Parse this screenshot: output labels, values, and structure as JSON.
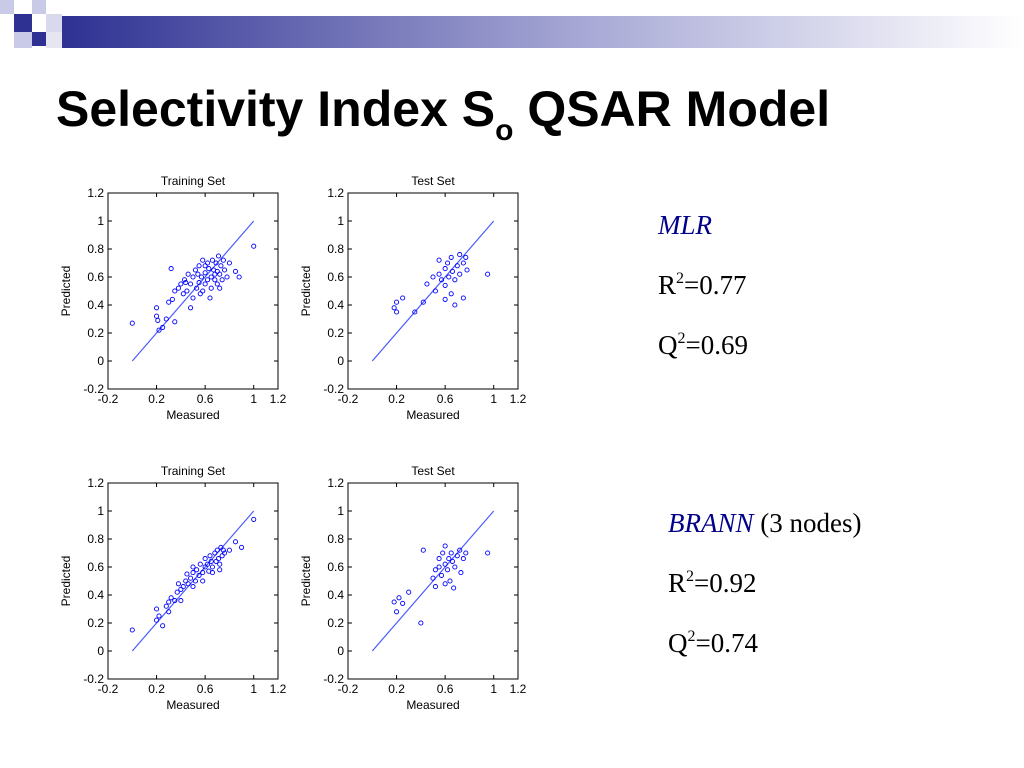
{
  "slide": {
    "title_main": "Selectivity Index S",
    "title_sub": "o",
    "title_rest": " QSAR Model"
  },
  "results": {
    "mlr": {
      "model": "MLR",
      "extra": "",
      "r_label": "R",
      "r_value": "=0.77",
      "q_label": "Q",
      "q_value": "=0.69",
      "exp": "2"
    },
    "brann": {
      "model": "BRANN",
      "extra": " (3 nodes)",
      "r_label": "R",
      "r_value": "=0.92",
      "q_label": "Q",
      "q_value": "=0.74",
      "exp": "2"
    }
  },
  "colors": {
    "points": "#0000ff",
    "fit_line": "#4a5cff",
    "banner_dark": "#2e3192",
    "banner_light": "#c9c9e8"
  },
  "chart_data": [
    {
      "type": "scatter",
      "title": "Training Set",
      "xlabel": "Measured",
      "ylabel": "Predicted",
      "xlim": [
        -0.2,
        1.2
      ],
      "ylim": [
        -0.2,
        1.2
      ],
      "xticks": [
        "-0.2",
        "0.2",
        "0.6",
        "1",
        "1.2"
      ],
      "yticks": [
        "1.2",
        "1",
        "0.8",
        "0.6",
        "0.4",
        "0.2",
        "0",
        "-0.2"
      ],
      "fit_line": [
        [
          0,
          0
        ],
        [
          1,
          1
        ]
      ],
      "points": [
        [
          0.0,
          0.27
        ],
        [
          0.2,
          0.38
        ],
        [
          0.2,
          0.32
        ],
        [
          0.21,
          0.29
        ],
        [
          0.22,
          0.22
        ],
        [
          0.25,
          0.24
        ],
        [
          0.28,
          0.3
        ],
        [
          0.3,
          0.42
        ],
        [
          0.33,
          0.44
        ],
        [
          0.35,
          0.28
        ],
        [
          0.35,
          0.5
        ],
        [
          0.38,
          0.52
        ],
        [
          0.4,
          0.55
        ],
        [
          0.42,
          0.48
        ],
        [
          0.43,
          0.58
        ],
        [
          0.45,
          0.5
        ],
        [
          0.46,
          0.62
        ],
        [
          0.48,
          0.55
        ],
        [
          0.5,
          0.6
        ],
        [
          0.5,
          0.45
        ],
        [
          0.52,
          0.65
        ],
        [
          0.53,
          0.52
        ],
        [
          0.55,
          0.68
        ],
        [
          0.55,
          0.56
        ],
        [
          0.57,
          0.6
        ],
        [
          0.58,
          0.5
        ],
        [
          0.58,
          0.72
        ],
        [
          0.6,
          0.63
        ],
        [
          0.6,
          0.55
        ],
        [
          0.62,
          0.7
        ],
        [
          0.62,
          0.58
        ],
        [
          0.63,
          0.66
        ],
        [
          0.65,
          0.6
        ],
        [
          0.65,
          0.52
        ],
        [
          0.66,
          0.72
        ],
        [
          0.67,
          0.65
        ],
        [
          0.68,
          0.58
        ],
        [
          0.69,
          0.7
        ],
        [
          0.7,
          0.64
        ],
        [
          0.7,
          0.55
        ],
        [
          0.71,
          0.75
        ],
        [
          0.72,
          0.62
        ],
        [
          0.73,
          0.68
        ],
        [
          0.74,
          0.58
        ],
        [
          0.75,
          0.72
        ],
        [
          0.76,
          0.65
        ],
        [
          0.78,
          0.6
        ],
        [
          0.8,
          0.7
        ],
        [
          0.85,
          0.64
        ],
        [
          0.88,
          0.6
        ],
        [
          1.0,
          0.82
        ],
        [
          0.32,
          0.66
        ],
        [
          0.48,
          0.38
        ],
        [
          0.56,
          0.48
        ],
        [
          0.64,
          0.45
        ],
        [
          0.54,
          0.62
        ],
        [
          0.6,
          0.68
        ],
        [
          0.68,
          0.62
        ],
        [
          0.72,
          0.52
        ],
        [
          0.44,
          0.56
        ]
      ]
    },
    {
      "type": "scatter",
      "title": "Test Set",
      "xlabel": "Measured",
      "ylabel": "Predicted",
      "xlim": [
        -0.2,
        1.2
      ],
      "ylim": [
        -0.2,
        1.2
      ],
      "xticks": [
        "-0.2",
        "0.2",
        "0.6",
        "1",
        "1.2"
      ],
      "yticks": [
        "1.2",
        "1",
        "0.8",
        "0.6",
        "0.4",
        "0.2",
        "0",
        "-0.2"
      ],
      "fit_line": [
        [
          0,
          0
        ],
        [
          1,
          1
        ]
      ],
      "points": [
        [
          0.18,
          0.38
        ],
        [
          0.2,
          0.42
        ],
        [
          0.2,
          0.35
        ],
        [
          0.25,
          0.45
        ],
        [
          0.35,
          0.35
        ],
        [
          0.42,
          0.42
        ],
        [
          0.45,
          0.55
        ],
        [
          0.5,
          0.6
        ],
        [
          0.52,
          0.5
        ],
        [
          0.55,
          0.62
        ],
        [
          0.55,
          0.72
        ],
        [
          0.57,
          0.58
        ],
        [
          0.6,
          0.66
        ],
        [
          0.6,
          0.54
        ],
        [
          0.62,
          0.7
        ],
        [
          0.63,
          0.6
        ],
        [
          0.65,
          0.48
        ],
        [
          0.65,
          0.74
        ],
        [
          0.66,
          0.64
        ],
        [
          0.68,
          0.58
        ],
        [
          0.68,
          0.4
        ],
        [
          0.7,
          0.68
        ],
        [
          0.72,
          0.62
        ],
        [
          0.72,
          0.76
        ],
        [
          0.75,
          0.7
        ],
        [
          0.75,
          0.45
        ],
        [
          0.77,
          0.74
        ],
        [
          0.78,
          0.65
        ],
        [
          0.95,
          0.62
        ],
        [
          0.6,
          0.44
        ]
      ]
    },
    {
      "type": "scatter",
      "title": "Training Set",
      "xlabel": "Measured",
      "ylabel": "Predicted",
      "xlim": [
        -0.2,
        1.2
      ],
      "ylim": [
        -0.2,
        1.2
      ],
      "xticks": [
        "-0.2",
        "0.2",
        "0.6",
        "1",
        "1.2"
      ],
      "yticks": [
        "1.2",
        "1",
        "0.8",
        "0.6",
        "0.4",
        "0.2",
        "0",
        "-0.2"
      ],
      "fit_line": [
        [
          0,
          0
        ],
        [
          1,
          1
        ]
      ],
      "points": [
        [
          0.0,
          0.15
        ],
        [
          0.2,
          0.3
        ],
        [
          0.2,
          0.22
        ],
        [
          0.22,
          0.25
        ],
        [
          0.25,
          0.18
        ],
        [
          0.28,
          0.32
        ],
        [
          0.3,
          0.35
        ],
        [
          0.32,
          0.38
        ],
        [
          0.35,
          0.36
        ],
        [
          0.37,
          0.42
        ],
        [
          0.38,
          0.48
        ],
        [
          0.4,
          0.44
        ],
        [
          0.42,
          0.46
        ],
        [
          0.44,
          0.5
        ],
        [
          0.45,
          0.55
        ],
        [
          0.46,
          0.48
        ],
        [
          0.48,
          0.52
        ],
        [
          0.5,
          0.56
        ],
        [
          0.5,
          0.6
        ],
        [
          0.52,
          0.5
        ],
        [
          0.53,
          0.58
        ],
        [
          0.55,
          0.54
        ],
        [
          0.56,
          0.62
        ],
        [
          0.58,
          0.56
        ],
        [
          0.6,
          0.6
        ],
        [
          0.6,
          0.66
        ],
        [
          0.62,
          0.62
        ],
        [
          0.63,
          0.57
        ],
        [
          0.64,
          0.68
        ],
        [
          0.65,
          0.64
        ],
        [
          0.66,
          0.6
        ],
        [
          0.68,
          0.7
        ],
        [
          0.69,
          0.64
        ],
        [
          0.7,
          0.72
        ],
        [
          0.71,
          0.66
        ],
        [
          0.72,
          0.62
        ],
        [
          0.73,
          0.74
        ],
        [
          0.74,
          0.68
        ],
        [
          0.75,
          0.72
        ],
        [
          0.76,
          0.7
        ],
        [
          0.8,
          0.72
        ],
        [
          0.85,
          0.78
        ],
        [
          0.9,
          0.74
        ],
        [
          1.0,
          0.94
        ],
        [
          0.3,
          0.28
        ],
        [
          0.4,
          0.36
        ],
        [
          0.5,
          0.46
        ],
        [
          0.58,
          0.5
        ],
        [
          0.66,
          0.56
        ],
        [
          0.72,
          0.58
        ]
      ]
    },
    {
      "type": "scatter",
      "title": "Test Set",
      "xlabel": "Measured",
      "ylabel": "Predicted",
      "xlim": [
        -0.2,
        1.2
      ],
      "ylim": [
        -0.2,
        1.2
      ],
      "xticks": [
        "-0.2",
        "0.2",
        "0.6",
        "1",
        "1.2"
      ],
      "yticks": [
        "1.2",
        "1",
        "0.8",
        "0.6",
        "0.4",
        "0.2",
        "0",
        "-0.2"
      ],
      "fit_line": [
        [
          0,
          0
        ],
        [
          1,
          1
        ]
      ],
      "points": [
        [
          0.18,
          0.35
        ],
        [
          0.2,
          0.28
        ],
        [
          0.22,
          0.38
        ],
        [
          0.25,
          0.34
        ],
        [
          0.3,
          0.42
        ],
        [
          0.4,
          0.2
        ],
        [
          0.42,
          0.72
        ],
        [
          0.5,
          0.52
        ],
        [
          0.52,
          0.58
        ],
        [
          0.55,
          0.6
        ],
        [
          0.55,
          0.66
        ],
        [
          0.57,
          0.54
        ],
        [
          0.58,
          0.7
        ],
        [
          0.6,
          0.62
        ],
        [
          0.6,
          0.75
        ],
        [
          0.62,
          0.58
        ],
        [
          0.63,
          0.66
        ],
        [
          0.64,
          0.5
        ],
        [
          0.65,
          0.7
        ],
        [
          0.66,
          0.64
        ],
        [
          0.67,
          0.45
        ],
        [
          0.68,
          0.6
        ],
        [
          0.7,
          0.68
        ],
        [
          0.72,
          0.72
        ],
        [
          0.73,
          0.56
        ],
        [
          0.75,
          0.66
        ],
        [
          0.77,
          0.7
        ],
        [
          0.95,
          0.7
        ],
        [
          0.6,
          0.48
        ],
        [
          0.52,
          0.46
        ]
      ]
    }
  ]
}
